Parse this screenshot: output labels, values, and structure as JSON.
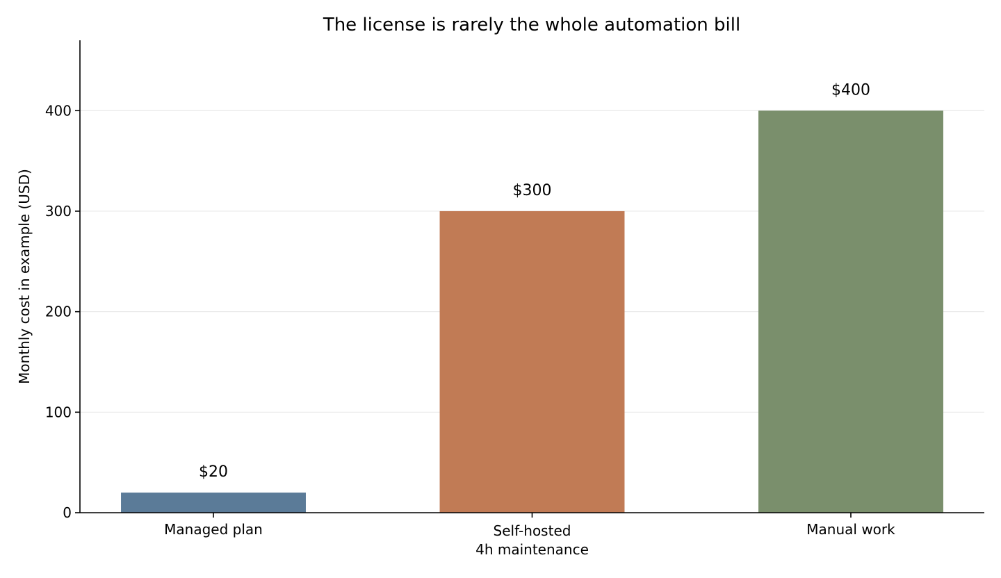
{
  "chart_data": {
    "type": "bar",
    "title": "The license is rarely the whole automation bill",
    "xlabel": "",
    "ylabel": "Monthly cost in example (USD)",
    "categories": [
      [
        "Managed plan"
      ],
      [
        "Self-hosted",
        "4h maintenance"
      ],
      [
        "Manual work"
      ]
    ],
    "values": [
      20,
      300,
      400
    ],
    "value_labels": [
      "$20",
      "$300",
      "$400"
    ],
    "colors": [
      "#5b7b98",
      "#c17b55",
      "#7a8f6c"
    ],
    "ylim": [
      0,
      470
    ],
    "yticks": [
      0,
      100,
      200,
      300,
      400
    ],
    "grid": "y",
    "legend": "none"
  }
}
